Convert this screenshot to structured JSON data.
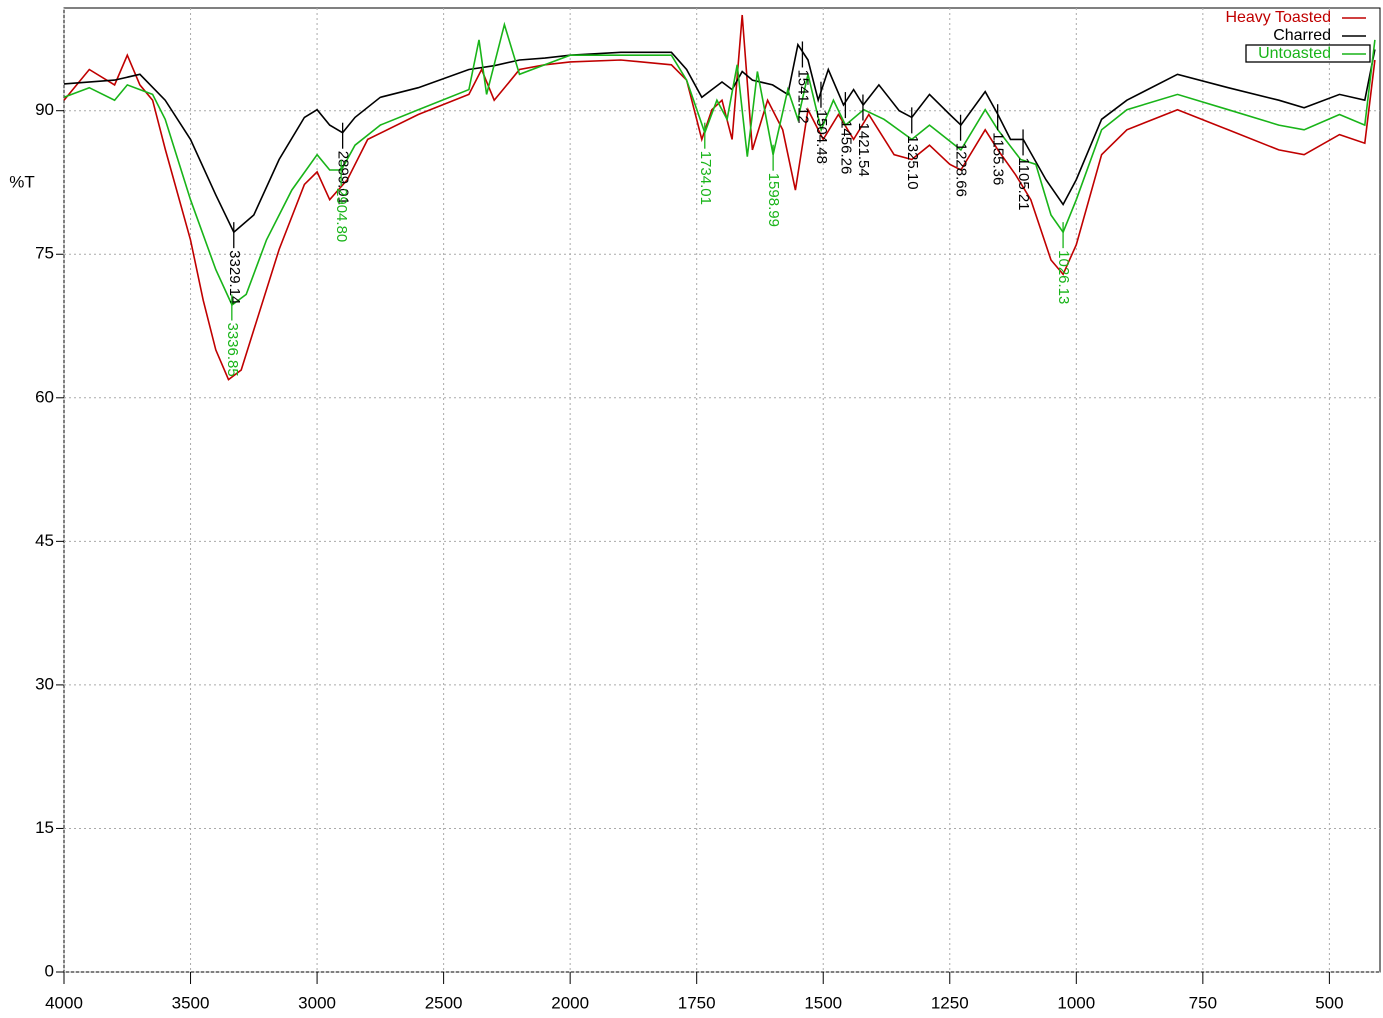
{
  "chart_data": {
    "type": "line",
    "ylabel": "%T",
    "xlim": [
      4000,
      400
    ],
    "x_scale_break": 2000,
    "ylim": [
      0,
      100
    ],
    "xticks": [
      4000,
      3500,
      3000,
      2500,
      2000,
      1750,
      1500,
      1250,
      1000,
      750,
      500
    ],
    "yticks": [
      0,
      15,
      30,
      45,
      60,
      75,
      90
    ],
    "grid": true,
    "legend": "top-right",
    "series": [
      {
        "name": "Heavy Toasted",
        "color": "#c00000",
        "x": [
          4000,
          3900,
          3800,
          3750,
          3700,
          3650,
          3600,
          3500,
          3450,
          3400,
          3350,
          3300,
          3250,
          3150,
          3050,
          3000,
          2950,
          2880,
          2800,
          2600,
          2400,
          2350,
          2300,
          2250,
          2200,
          2100,
          2000,
          1900,
          1800,
          1770,
          1740,
          1720,
          1700,
          1680,
          1660,
          1640,
          1610,
          1580,
          1555,
          1530,
          1500,
          1470,
          1440,
          1410,
          1360,
          1325,
          1290,
          1250,
          1228,
          1180,
          1155,
          1120,
          1090,
          1050,
          1026,
          1000,
          950,
          900,
          800,
          700,
          600,
          550,
          480,
          430,
          410
        ],
        "values": [
          91.1,
          94.3,
          92.7,
          95.8,
          92.7,
          91.1,
          86,
          76.5,
          70.2,
          65,
          61.9,
          62.9,
          67.1,
          75.5,
          82.3,
          83.6,
          80.7,
          82.8,
          87,
          89.6,
          91.7,
          94.3,
          91.1,
          92.7,
          94.3,
          94.8,
          95.1,
          95.3,
          94.8,
          93.2,
          87,
          90.1,
          91.1,
          87,
          100,
          85.9,
          91.1,
          88,
          81.7,
          90.1,
          87,
          89.6,
          87,
          89.6,
          85.4,
          84.9,
          86.4,
          84.4,
          83.8,
          88,
          85.9,
          83.3,
          80.7,
          74.4,
          72.9,
          76,
          85.4,
          88,
          90.1,
          88,
          85.9,
          85.4,
          87.5,
          86.6,
          95.3
        ]
      },
      {
        "name": "Charred",
        "color": "#000000",
        "x": [
          4000,
          3800,
          3700,
          3600,
          3500,
          3400,
          3329,
          3250,
          3150,
          3050,
          3000,
          2950,
          2899,
          2850,
          2750,
          2600,
          2400,
          2300,
          2200,
          2100,
          2000,
          1900,
          1800,
          1770,
          1740,
          1720,
          1700,
          1680,
          1660,
          1640,
          1600,
          1570,
          1550,
          1530,
          1510,
          1490,
          1460,
          1440,
          1421,
          1390,
          1350,
          1325,
          1290,
          1250,
          1228,
          1180,
          1155,
          1130,
          1105,
          1060,
          1026,
          1000,
          950,
          900,
          800,
          700,
          600,
          550,
          480,
          430,
          410
        ],
        "values": [
          92.8,
          93.2,
          93.8,
          91.1,
          87,
          81.2,
          77.3,
          79.1,
          84.9,
          89.3,
          90.1,
          88.5,
          87.7,
          89.3,
          91.4,
          92.4,
          94.3,
          94.7,
          95.3,
          95.5,
          95.8,
          96.1,
          96.1,
          94.3,
          91.4,
          92.2,
          93,
          92.2,
          94.1,
          93.2,
          92.7,
          91.7,
          96.9,
          95.3,
          91.1,
          94.3,
          90.6,
          92.2,
          90.6,
          92.7,
          90,
          89.3,
          91.7,
          89.6,
          88.5,
          92,
          89.6,
          87,
          87,
          82.8,
          80.2,
          82.8,
          89.1,
          91.1,
          93.8,
          92.4,
          91.1,
          90.3,
          91.7,
          91.1,
          96.4
        ]
      },
      {
        "name": "Untoasted",
        "color": "#19b419",
        "x": [
          4000,
          3900,
          3800,
          3750,
          3700,
          3650,
          3600,
          3500,
          3400,
          3336,
          3280,
          3200,
          3100,
          3000,
          2950,
          2904,
          2850,
          2750,
          2600,
          2400,
          2360,
          2330,
          2260,
          2200,
          2100,
          2000,
          1900,
          1800,
          1770,
          1734,
          1710,
          1690,
          1670,
          1650,
          1630,
          1599,
          1570,
          1550,
          1530,
          1504,
          1480,
          1456,
          1420,
          1380,
          1325,
          1290,
          1228,
          1180,
          1155,
          1110,
          1080,
          1050,
          1026,
          1000,
          950,
          900,
          800,
          700,
          600,
          550,
          480,
          430,
          410
        ],
        "values": [
          91.4,
          92.4,
          91.1,
          92.7,
          92.2,
          91.7,
          89.1,
          80.7,
          73.4,
          69.7,
          70.8,
          76.5,
          81.7,
          85.4,
          83.8,
          83.8,
          86.4,
          88.5,
          90.1,
          92.2,
          97.4,
          91.7,
          99,
          93.8,
          94.8,
          95.8,
          95.8,
          95.8,
          93.2,
          87.7,
          91.1,
          89.1,
          94.8,
          85.2,
          94.1,
          85.4,
          92.2,
          89.1,
          93.8,
          88,
          91.1,
          88.5,
          90.1,
          89.1,
          87,
          88.5,
          85.9,
          90.1,
          88,
          84.9,
          84.4,
          79.1,
          77.3,
          80.7,
          88,
          90.1,
          91.7,
          90.1,
          88.5,
          88,
          89.6,
          88.5,
          97.4
        ]
      }
    ],
    "annotations": [
      {
        "x": 3329.14,
        "series": 1
      },
      {
        "x": 2899.01,
        "series": 1
      },
      {
        "x": 1541.12,
        "series": 1
      },
      {
        "x": 1504.48,
        "series": 1
      },
      {
        "x": 1456.26,
        "series": 1
      },
      {
        "x": 1421.54,
        "series": 1
      },
      {
        "x": 1325.1,
        "label": "1325.10",
        "series": 1
      },
      {
        "x": 1228.66,
        "series": 1
      },
      {
        "x": 1155.36,
        "series": 1
      },
      {
        "x": 1105.21,
        "series": 1
      },
      {
        "x": 3336.85,
        "series": 2
      },
      {
        "x": 2904.8,
        "label": "2904.80",
        "series": 2
      },
      {
        "x": 1734.01,
        "series": 2
      },
      {
        "x": 1598.99,
        "series": 2
      },
      {
        "x": 1026.13,
        "series": 2
      }
    ]
  }
}
